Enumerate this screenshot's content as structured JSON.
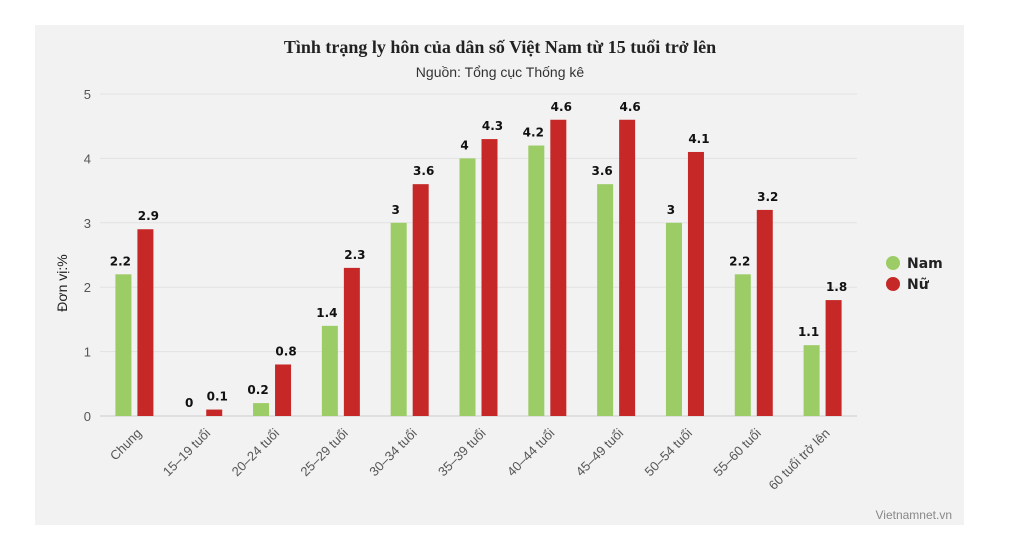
{
  "chart_data": {
    "type": "bar",
    "title": "Tình trạng ly hôn của dân số Việt Nam từ 15 tuổi trở lên",
    "subtitle": "Nguồn: Tổng cục Thống kê",
    "ylabel": "Đơn vị:%",
    "xlabel": "",
    "ylim": [
      0,
      5
    ],
    "yticks": [
      "0",
      "1",
      "2",
      "3",
      "4",
      "5"
    ],
    "grid": true,
    "legend_position": "right",
    "categories": [
      "Chung",
      "15–19 tuổi",
      "20–24 tuổi",
      "25–29 tuổi",
      "30–34 tuổi",
      "35–39 tuổi",
      "40–44 tuổi",
      "45–49 tuổi",
      "50–54 tuổi",
      "55–60 tuổi",
      "60 tuổi trở lên"
    ],
    "series": [
      {
        "name": "Nam",
        "color": "#9ccc65",
        "values": [
          2.2,
          0,
          0.2,
          1.4,
          3,
          4,
          4.2,
          3.6,
          3,
          2.2,
          1.1
        ]
      },
      {
        "name": "Nữ",
        "color": "#c62828",
        "values": [
          2.9,
          0.1,
          0.8,
          2.3,
          3.6,
          4.3,
          4.6,
          4.6,
          4.1,
          3.2,
          1.8
        ]
      }
    ],
    "credits": "Vietnamnet.vn"
  }
}
